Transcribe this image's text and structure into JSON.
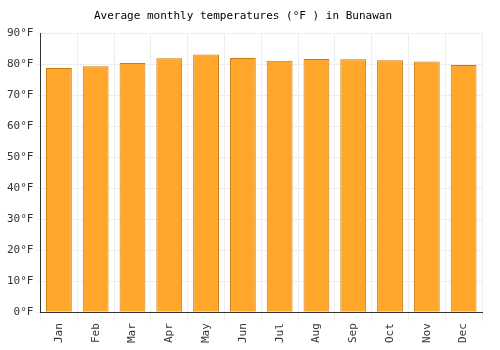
{
  "chart_data": {
    "type": "bar",
    "title": "Average monthly temperatures (°F ) in Bunawan",
    "categories": [
      "Jan",
      "Feb",
      "Mar",
      "Apr",
      "May",
      "Jun",
      "Jul",
      "Aug",
      "Sep",
      "Oct",
      "Nov",
      "Dec"
    ],
    "values": [
      78.8,
      79.3,
      80.4,
      81.9,
      83.1,
      82.0,
      81.1,
      81.7,
      81.6,
      81.3,
      80.9,
      79.7
    ],
    "color": "#ffa62b",
    "ylim": [
      0,
      90
    ],
    "yticks": [
      {
        "value": 0,
        "label": "0°F"
      },
      {
        "value": 10,
        "label": "10°F"
      },
      {
        "value": 20,
        "label": "20°F"
      },
      {
        "value": 30,
        "label": "30°F"
      },
      {
        "value": 40,
        "label": "40°F"
      },
      {
        "value": 50,
        "label": "50°F"
      },
      {
        "value": 60,
        "label": "60°F"
      },
      {
        "value": 70,
        "label": "70°F"
      },
      {
        "value": 80,
        "label": "80°F"
      },
      {
        "value": 90,
        "label": "90°F"
      }
    ],
    "grid": true
  }
}
